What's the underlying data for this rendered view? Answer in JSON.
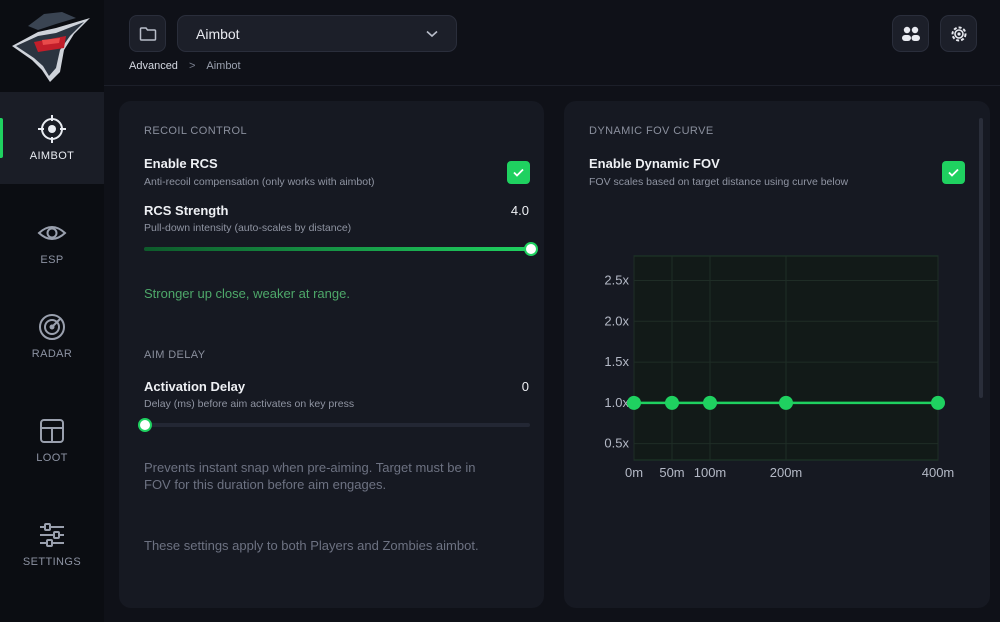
{
  "sidebar": {
    "items": [
      {
        "label": "AIMBOT",
        "icon": "crosshair-icon",
        "active": true
      },
      {
        "label": "ESP",
        "icon": "eye-icon",
        "active": false
      },
      {
        "label": "RADAR",
        "icon": "radar-icon",
        "active": false
      },
      {
        "label": "LOOT",
        "icon": "loot-box-icon",
        "active": false
      },
      {
        "label": "SETTINGS",
        "icon": "sliders-icon",
        "active": false
      }
    ]
  },
  "header": {
    "preset_value": "Aimbot",
    "breadcrumb": [
      "Advanced",
      "Aimbot"
    ],
    "breadcrumb_sep": ">"
  },
  "left_panel": {
    "recoil_title": "RECOIL CONTROL",
    "enable_rcs": {
      "name": "Enable RCS",
      "desc": "Anti-recoil compensation (only works with aimbot)",
      "checked": true
    },
    "rcs_strength": {
      "name": "RCS Strength",
      "desc": "Pull-down intensity (auto-scales by distance)",
      "value": "4.0",
      "fraction": 1.0
    },
    "rcs_note": "Stronger up close, weaker at range.",
    "aim_delay_title": "AIM DELAY",
    "activation_delay": {
      "name": "Activation Delay",
      "desc": "Delay (ms) before aim activates on key press",
      "value": "0",
      "fraction": 0.0
    },
    "delay_note_1": "Prevents instant snap when pre-aiming. Target must be in",
    "delay_note_2": "FOV for this duration before aim engages.",
    "footer_note": "These settings apply to both Players and Zombies aimbot."
  },
  "right_panel": {
    "title": "DYNAMIC FOV CURVE",
    "enable_fov": {
      "name": "Enable Dynamic FOV",
      "desc": "FOV scales based on target distance using curve below",
      "checked": true
    }
  },
  "chart_data": {
    "type": "line",
    "x": [
      0,
      50,
      100,
      200,
      400
    ],
    "x_tick_labels": [
      "0m",
      "50m",
      "100m",
      "200m",
      "400m"
    ],
    "y": [
      1.0,
      1.0,
      1.0,
      1.0,
      1.0
    ],
    "y_ticks": [
      0.5,
      1.0,
      1.5,
      2.0,
      2.5
    ],
    "y_tick_labels": [
      "0.5x",
      "1.0x",
      "1.5x",
      "2.0x",
      "2.5x"
    ],
    "xlim": [
      0,
      400
    ],
    "ylim": [
      0.3,
      2.8
    ],
    "grid": true,
    "color": "#1fd160"
  },
  "colors": {
    "accent": "#1fd160",
    "background": "#0f1118",
    "panel": "#161922"
  }
}
